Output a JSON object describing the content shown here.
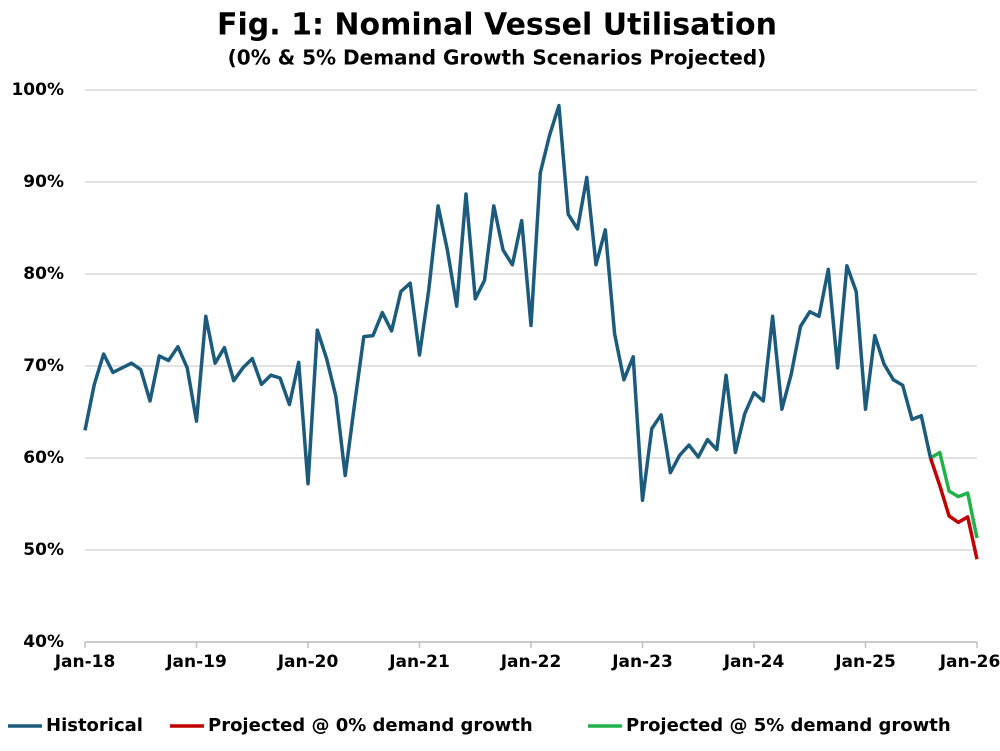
{
  "chart_data": {
    "type": "line",
    "title": "Fig. 1: Nominal Vessel Utilisation",
    "subtitle": "(0% & 5% Demand Growth Scenarios Projected)",
    "categories": [
      "Jan-18",
      null,
      null,
      null,
      null,
      null,
      null,
      null,
      null,
      null,
      null,
      null,
      "Jan-19",
      null,
      null,
      null,
      null,
      null,
      null,
      null,
      null,
      null,
      null,
      null,
      "Jan-20",
      null,
      null,
      null,
      null,
      null,
      null,
      null,
      null,
      null,
      null,
      null,
      "Jan-21",
      null,
      null,
      null,
      null,
      null,
      null,
      null,
      null,
      null,
      null,
      null,
      "Jan-22",
      null,
      null,
      null,
      null,
      null,
      null,
      null,
      null,
      null,
      null,
      null,
      "Jan-23",
      null,
      null,
      null,
      null,
      null,
      null,
      null,
      null,
      null,
      null,
      null,
      "Jan-24",
      null,
      null,
      null,
      null,
      null,
      null,
      null,
      null,
      null,
      null,
      null,
      "Jan-25",
      null,
      null,
      null,
      null,
      null,
      null,
      null,
      null,
      null,
      null,
      null,
      "Jan-26"
    ],
    "series": [
      {
        "name": "Historical",
        "color": "#1d5b7c",
        "values": [
          63.0,
          68.0,
          71.3,
          69.3,
          69.8,
          70.3,
          69.6,
          66.2,
          71.1,
          70.6,
          72.1,
          69.8,
          64.0,
          75.4,
          70.3,
          72.0,
          68.4,
          69.8,
          70.8,
          68.0,
          69.0,
          68.7,
          65.8,
          70.4,
          57.2,
          73.9,
          70.8,
          66.7,
          58.1,
          65.8,
          73.2,
          73.3,
          75.8,
          73.8,
          78.1,
          79.0,
          71.2,
          78.3,
          87.4,
          82.6,
          76.5,
          88.7,
          77.3,
          79.3,
          87.4,
          82.6,
          81.0,
          85.8,
          74.4,
          91.0,
          95.1,
          98.3,
          86.5,
          84.9,
          90.5,
          81.0,
          84.8,
          73.5,
          68.5,
          71.0,
          55.4,
          63.2,
          64.7,
          58.4,
          60.3,
          61.4,
          60.1,
          62.0,
          60.9,
          69.0,
          60.6,
          64.8,
          67.1,
          66.2,
          75.4,
          65.3,
          69.1,
          74.3,
          75.9,
          75.4,
          80.5,
          69.8,
          80.9,
          78.1,
          65.3,
          73.3,
          70.2,
          68.5,
          67.9,
          64.2,
          64.6,
          60.0,
          null,
          null,
          null,
          null,
          null
        ]
      },
      {
        "name": "Projected @ 0% demand growth",
        "color": "#c00000",
        "values": [
          null,
          null,
          null,
          null,
          null,
          null,
          null,
          null,
          null,
          null,
          null,
          null,
          null,
          null,
          null,
          null,
          null,
          null,
          null,
          null,
          null,
          null,
          null,
          null,
          null,
          null,
          null,
          null,
          null,
          null,
          null,
          null,
          null,
          null,
          null,
          null,
          null,
          null,
          null,
          null,
          null,
          null,
          null,
          null,
          null,
          null,
          null,
          null,
          null,
          null,
          null,
          null,
          null,
          null,
          null,
          null,
          null,
          null,
          null,
          null,
          null,
          null,
          null,
          null,
          null,
          null,
          null,
          null,
          null,
          null,
          null,
          null,
          null,
          null,
          null,
          null,
          null,
          null,
          null,
          null,
          null,
          null,
          null,
          null,
          null,
          null,
          null,
          null,
          null,
          null,
          null,
          60.0,
          57.0,
          53.7,
          53.0,
          53.6,
          49.0
        ]
      },
      {
        "name": "Projected @ 5% demand growth",
        "color": "#22b24c",
        "values": [
          null,
          null,
          null,
          null,
          null,
          null,
          null,
          null,
          null,
          null,
          null,
          null,
          null,
          null,
          null,
          null,
          null,
          null,
          null,
          null,
          null,
          null,
          null,
          null,
          null,
          null,
          null,
          null,
          null,
          null,
          null,
          null,
          null,
          null,
          null,
          null,
          null,
          null,
          null,
          null,
          null,
          null,
          null,
          null,
          null,
          null,
          null,
          null,
          null,
          null,
          null,
          null,
          null,
          null,
          null,
          null,
          null,
          null,
          null,
          null,
          null,
          null,
          null,
          null,
          null,
          null,
          null,
          null,
          null,
          null,
          null,
          null,
          null,
          null,
          null,
          null,
          null,
          null,
          null,
          null,
          null,
          null,
          null,
          null,
          null,
          null,
          null,
          null,
          null,
          null,
          null,
          60.0,
          60.6,
          56.4,
          55.8,
          56.2,
          51.3
        ]
      }
    ],
    "ylim": [
      40,
      100
    ],
    "yticks": [
      {
        "value": 40,
        "label": "40%"
      },
      {
        "value": 50,
        "label": "50%"
      },
      {
        "value": 60,
        "label": "60%"
      },
      {
        "value": 70,
        "label": "70%"
      },
      {
        "value": 80,
        "label": "80%"
      },
      {
        "value": 90,
        "label": "90%"
      },
      {
        "value": 100,
        "label": "100%"
      }
    ],
    "grid": true,
    "legend": "bottom"
  }
}
